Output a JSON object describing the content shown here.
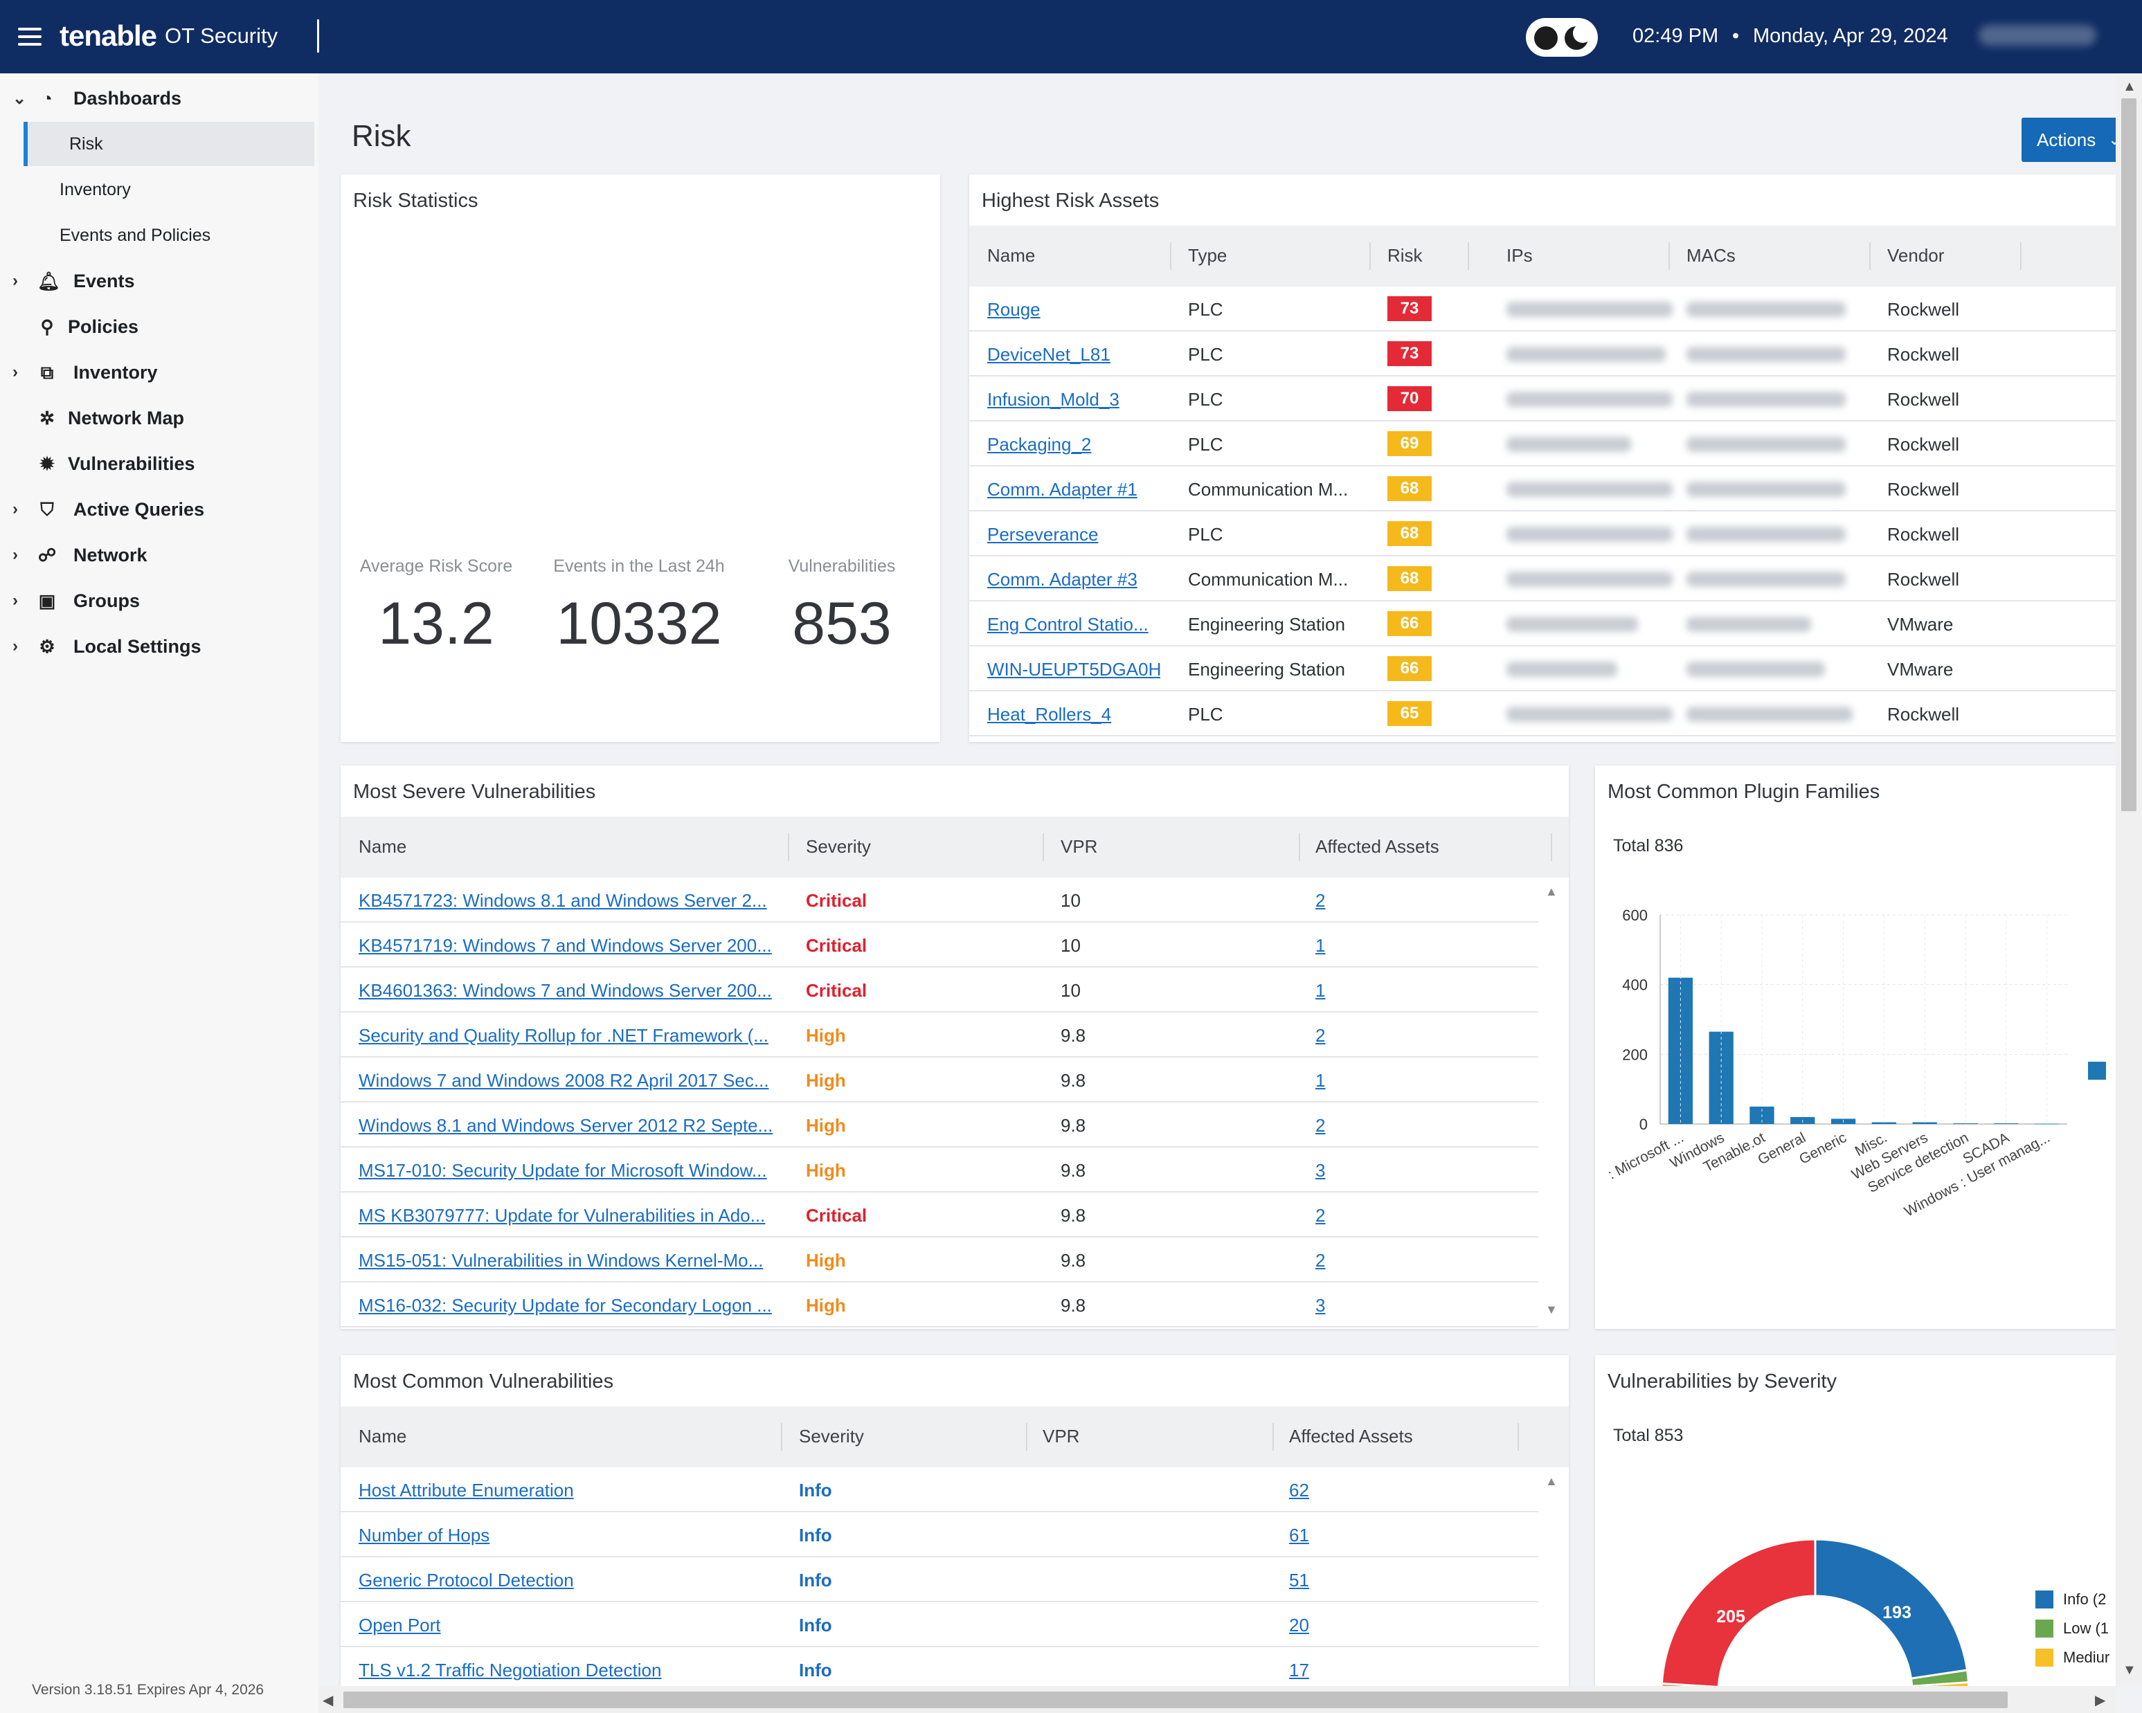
{
  "topbar": {
    "brand": "tenable",
    "product": "OT Security",
    "time": "02:49 PM",
    "separator": "•",
    "date": "Monday, Apr 29, 2024"
  },
  "sidebar": {
    "items": [
      {
        "label": "Dashboards",
        "icon": "dashboard-icon",
        "chevron": "⌄"
      },
      {
        "label": "Risk"
      },
      {
        "label": "Inventory"
      },
      {
        "label": "Events and Policies"
      },
      {
        "label": "Events",
        "icon": "bell-icon",
        "chevron": "›"
      },
      {
        "label": "Policies",
        "icon": "policy-icon"
      },
      {
        "label": "Inventory",
        "icon": "inventory-icon",
        "chevron": "›"
      },
      {
        "label": "Network Map",
        "icon": "network-map-icon"
      },
      {
        "label": "Vulnerabilities",
        "icon": "bug-icon"
      },
      {
        "label": "Active Queries",
        "icon": "shield-icon",
        "chevron": "›"
      },
      {
        "label": "Network",
        "icon": "network-icon",
        "chevron": "›"
      },
      {
        "label": "Groups",
        "icon": "groups-icon",
        "chevron": "›"
      },
      {
        "label": "Local Settings",
        "icon": "settings-icon",
        "chevron": "›"
      }
    ],
    "version_prefix": "Version",
    "version": "3.18.51",
    "expires_prefix": "Expires",
    "expires": "Apr 4, 2026"
  },
  "page": {
    "title": "Risk",
    "actions_label": "Actions"
  },
  "risk_statistics": {
    "title": "Risk Statistics",
    "stats": [
      {
        "label": "Average Risk Score",
        "value": "13.2"
      },
      {
        "label": "Events in the Last 24h",
        "value": "10332"
      },
      {
        "label": "Vulnerabilities",
        "value": "853"
      }
    ]
  },
  "highest_risk_assets": {
    "title": "Highest Risk Assets",
    "columns": [
      "Name",
      "Type",
      "Risk",
      "IPs",
      "MACs",
      "Vendor"
    ],
    "rows": [
      {
        "name": "Rouge",
        "type": "PLC",
        "risk": "73",
        "level": "red",
        "vendor": "Rockwell"
      },
      {
        "name": "DeviceNet_L81",
        "type": "PLC",
        "risk": "73",
        "level": "red",
        "vendor": "Rockwell"
      },
      {
        "name": "Infusion_Mold_3",
        "type": "PLC",
        "risk": "70",
        "level": "red",
        "vendor": "Rockwell"
      },
      {
        "name": "Packaging_2",
        "type": "PLC",
        "risk": "69",
        "level": "yellow",
        "vendor": "Rockwell"
      },
      {
        "name": "Comm. Adapter #1",
        "type": "Communication M...",
        "risk": "68",
        "level": "yellow",
        "vendor": "Rockwell"
      },
      {
        "name": "Perseverance",
        "type": "PLC",
        "risk": "68",
        "level": "yellow",
        "vendor": "Rockwell"
      },
      {
        "name": "Comm. Adapter #3",
        "type": "Communication M...",
        "risk": "68",
        "level": "yellow",
        "vendor": "Rockwell"
      },
      {
        "name": "Eng Control Statio...",
        "type": "Engineering Station",
        "risk": "66",
        "level": "yellow",
        "vendor": "VMware"
      },
      {
        "name": "WIN-UEUPT5DGA0H",
        "type": "Engineering Station",
        "risk": "66",
        "level": "yellow",
        "vendor": "VMware"
      },
      {
        "name": "Heat_Rollers_4",
        "type": "PLC",
        "risk": "65",
        "level": "yellow",
        "vendor": "Rockwell"
      }
    ]
  },
  "most_severe_vulnerabilities": {
    "title": "Most Severe Vulnerabilities",
    "columns": [
      "Name",
      "Severity",
      "VPR",
      "Affected Assets"
    ],
    "rows": [
      {
        "name": "KB4571723: Windows 8.1 and Windows Server 2...",
        "severity": "Critical",
        "vpr": "10",
        "assets": "2"
      },
      {
        "name": "KB4571719: Windows 7 and Windows Server 200...",
        "severity": "Critical",
        "vpr": "10",
        "assets": "1"
      },
      {
        "name": "KB4601363: Windows 7 and Windows Server 200...",
        "severity": "Critical",
        "vpr": "10",
        "assets": "1"
      },
      {
        "name": "Security and Quality Rollup for .NET Framework (...",
        "severity": "High",
        "vpr": "9.8",
        "assets": "2"
      },
      {
        "name": "Windows 7 and Windows 2008 R2 April 2017 Sec...",
        "severity": "High",
        "vpr": "9.8",
        "assets": "1"
      },
      {
        "name": "Windows 8.1 and Windows Server 2012 R2 Septe...",
        "severity": "High",
        "vpr": "9.8",
        "assets": "2"
      },
      {
        "name": "MS17-010: Security Update for Microsoft Window...",
        "severity": "High",
        "vpr": "9.8",
        "assets": "3"
      },
      {
        "name": "MS KB3079777: Update for Vulnerabilities in Ado...",
        "severity": "Critical",
        "vpr": "9.8",
        "assets": "2"
      },
      {
        "name": "MS15-051: Vulnerabilities in Windows Kernel-Mo...",
        "severity": "High",
        "vpr": "9.8",
        "assets": "2"
      },
      {
        "name": "MS16-032: Security Update for Secondary Logon ...",
        "severity": "High",
        "vpr": "9.8",
        "assets": "3"
      }
    ]
  },
  "most_common_vulnerabilities": {
    "title": "Most Common Vulnerabilities",
    "columns": [
      "Name",
      "Severity",
      "VPR",
      "Affected Assets"
    ],
    "rows": [
      {
        "name": "Host Attribute Enumeration",
        "severity": "Info",
        "assets": "62"
      },
      {
        "name": "Number of Hops",
        "severity": "Info",
        "assets": "61"
      },
      {
        "name": "Generic Protocol Detection",
        "severity": "Info",
        "assets": "51"
      },
      {
        "name": "Open Port",
        "severity": "Info",
        "assets": "20"
      },
      {
        "name": "TLS v1.2 Traffic Negotiation Detection",
        "severity": "Info",
        "assets": "17"
      }
    ]
  },
  "chart_data": [
    {
      "type": "bar",
      "title": "Most Common Plugin Families",
      "total_label": "Total 836",
      "categories": [
        ": Microsoft ...",
        "Windows",
        "Tenable.ot",
        "General",
        "Generic",
        "Misc.",
        "Web Servers",
        "Service detection",
        "SCADA",
        "Windows : User manag..."
      ],
      "values": [
        420,
        265,
        50,
        20,
        15,
        5,
        5,
        2,
        2,
        1
      ],
      "yticks": [
        "0",
        "200",
        "400",
        "600"
      ],
      "ylim": [
        0,
        600
      ],
      "color": "#1f77b4"
    },
    {
      "type": "pie",
      "title": "Vulnerabilities by Severity",
      "total_label": "Total 853",
      "slices": [
        {
          "label": "Info (2",
          "value": 205,
          "color": "#e8323c"
        },
        {
          "label": "Info (2",
          "value": 193,
          "color": "#1f6fb4"
        }
      ],
      "shown_values": [
        "205",
        "193"
      ],
      "legend": [
        {
          "label": "Info (2",
          "color": "#1f6fb4"
        },
        {
          "label": "Low (1",
          "color": "#6aa84f"
        },
        {
          "label": "Mediur",
          "color": "#f6c026"
        }
      ]
    }
  ]
}
